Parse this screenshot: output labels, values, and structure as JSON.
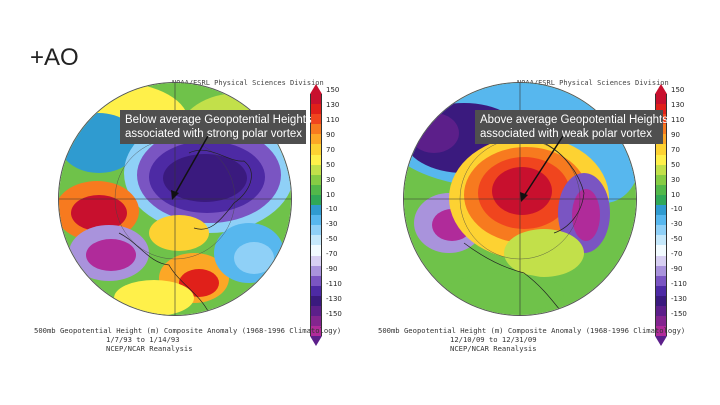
{
  "slide_title": "+AO",
  "colorbar": {
    "ticks": [
      "150",
      "130",
      "110",
      "90",
      "70",
      "50",
      "30",
      "10",
      "-10",
      "-30",
      "-50",
      "-70",
      "-90",
      "-110",
      "-130",
      "-150"
    ],
    "colors": [
      "#c8102e",
      "#e0201a",
      "#f0451e",
      "#f77a1f",
      "#fca726",
      "#fdd232",
      "#fff04a",
      "#c2e04a",
      "#86cc44",
      "#52b84a",
      "#30a858",
      "#2f9bd0",
      "#57b7ee",
      "#8fd0f7",
      "#c5e8fb",
      "#f2fbff",
      "#d7cff2",
      "#a993dc",
      "#7a55c2",
      "#4d2aa4",
      "#3a1a7e",
      "#5c1f8a",
      "#83258f",
      "#b02b9a"
    ]
  },
  "panels": [
    {
      "credit": "NOAA/ESRL Physical Sciences Division",
      "callout_line1": "Below average Geopotential Heights",
      "callout_line2": "associated with strong polar vortex",
      "caption_line1": "500mb Geopotential Height (m) Composite Anomaly (1968-1996 Climatology)",
      "caption_line2": "1/7/93  to 1/14/93",
      "caption_line3": "NCEP/NCAR Reanalysis",
      "anomaly": "negative"
    },
    {
      "credit": "NOAA/ESRL Physical Sciences Division",
      "callout_line1": "Above average Geopotential Heights",
      "callout_line2": "associated with weak polar vortex",
      "caption_line1": "500mb Geopotential Height (m) Composite Anomaly (1968-1996 Climatology)",
      "caption_line2": "12/10/09 to 12/31/09",
      "caption_line3": "NCEP/NCAR Reanalysis",
      "anomaly": "positive"
    }
  ]
}
